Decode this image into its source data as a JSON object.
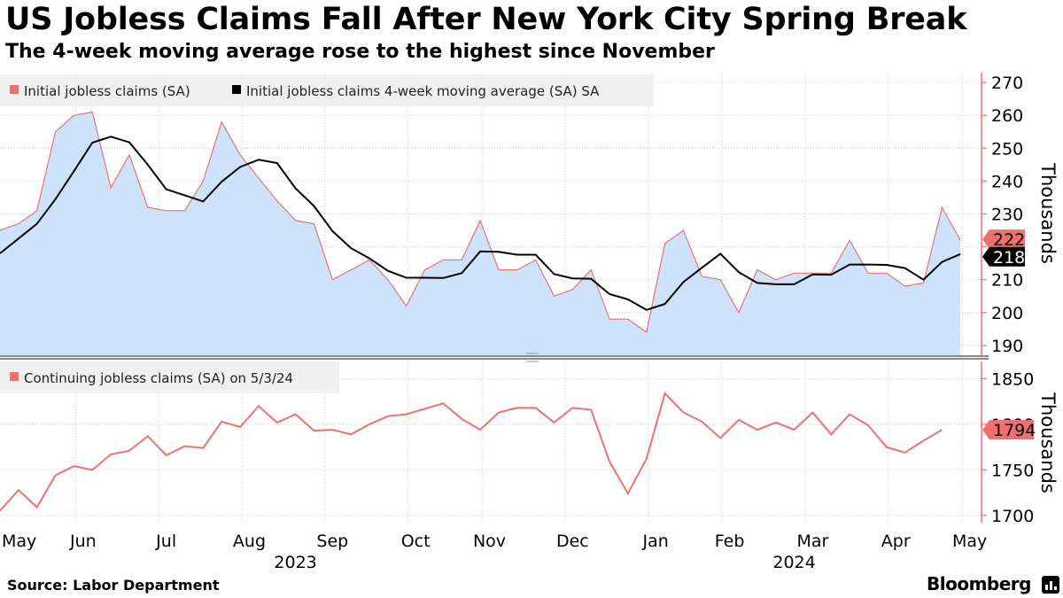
{
  "title": "US Jobless Claims Fall After New York City Spring Break",
  "subtitle": "The 4-week moving average rose to the highest since November",
  "source": "Source: Labor Department",
  "brand": "Bloomberg",
  "colors": {
    "initial_line": "#f07070",
    "area_fill": "#cde3fb",
    "average_line": "#000000",
    "continuing_line": "#f07070",
    "axis": "#f07070",
    "grid": "#cccccc",
    "divider": "#444444",
    "legend_bg": "#f0f0f0"
  },
  "chart_data": [
    {
      "type": "area",
      "ylabel": "Thousands",
      "ylim": [
        187,
        273
      ],
      "yticks": [
        190,
        200,
        210,
        220,
        230,
        240,
        250,
        260,
        270
      ],
      "legend_placement": "top-left",
      "grid": true,
      "series": [
        {
          "name": "Initial jobless claims (SA)",
          "style": "area",
          "last_value_label": "222",
          "values": [
            225,
            227,
            231,
            255,
            260,
            261,
            238,
            248,
            232,
            231,
            231,
            240,
            258,
            248,
            241,
            234,
            228,
            227,
            210,
            213,
            216,
            210,
            202,
            213,
            216,
            216,
            228,
            213,
            213,
            216,
            205,
            207,
            213,
            198,
            198,
            194,
            221,
            225,
            211,
            210,
            200,
            213,
            210,
            212,
            212,
            212,
            222,
            212,
            212,
            208,
            209,
            232,
            222
          ]
        },
        {
          "name": "Initial jobless claims 4-week moving average (SA) SA",
          "style": "line",
          "last_value_label": "218",
          "values": [
            218,
            222.5,
            227,
            234.5,
            243,
            251.7,
            253.5,
            251.8,
            245,
            237.5,
            235.7,
            233.8,
            239.8,
            244.3,
            246.5,
            245.5,
            237.8,
            232.4,
            224.8,
            219.6,
            216.5,
            212.7,
            210.6,
            210.6,
            210.5,
            212,
            218.6,
            218.5,
            217.6,
            217.6,
            211.7,
            210.4,
            210.3,
            205.6,
            204,
            200.8,
            202.6,
            209.3,
            213.6,
            217.9,
            212.3,
            209,
            208.6,
            208.6,
            211.6,
            211.5,
            214.6,
            214.6,
            214.5,
            213.5,
            210,
            215.4,
            217.8
          ]
        }
      ]
    },
    {
      "type": "line",
      "ylabel": "Thousands",
      "ylim": [
        1692,
        1869
      ],
      "yticks": [
        1700,
        1750,
        1800,
        1850
      ],
      "legend_placement": "top-left",
      "grid": true,
      "series": [
        {
          "name": "Continuing jobless claims (SA) on 5/3/24",
          "last_value_label": "1794",
          "values": [
            1705,
            1728,
            1709,
            1744,
            1754,
            1750,
            1767,
            1771,
            1787,
            1766,
            1776,
            1774,
            1803,
            1797,
            1820,
            1802,
            1811,
            1793,
            1794,
            1789,
            1800,
            1809,
            1811,
            1817,
            1823,
            1806,
            1794,
            1813,
            1818,
            1818,
            1802,
            1818,
            1816,
            1759,
            1724,
            1762,
            1834,
            1813,
            1803,
            1785,
            1805,
            1794,
            1802,
            1794,
            1813,
            1789,
            1811,
            1799,
            1775,
            1769,
            1782,
            1794
          ]
        }
      ]
    }
  ],
  "x_axis": {
    "months": [
      "May",
      "Jun",
      "Jul",
      "Aug",
      "Sep",
      "Oct",
      "Nov",
      "Dec",
      "Jan",
      "Feb",
      "Mar",
      "Apr",
      "May"
    ],
    "month_week_index": [
      0.5,
      4.5,
      9,
      13.5,
      18,
      22.5,
      26.5,
      31,
      35.5,
      39.5,
      44,
      48.5,
      52.5
    ],
    "years": [
      "2023",
      "2024"
    ],
    "year_week_index": [
      16,
      43
    ]
  }
}
